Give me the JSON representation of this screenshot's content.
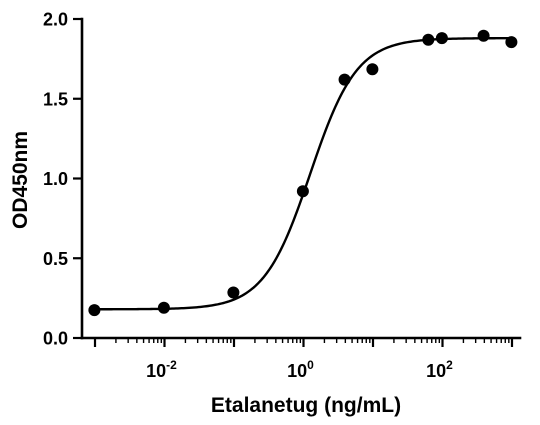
{
  "chart_data": {
    "type": "scatter",
    "title": "",
    "xlabel": "Etalanetug (ng/mL)",
    "ylabel": "OD450nm",
    "x_scale": "log10",
    "xlim": [
      0.001,
      1000
    ],
    "ylim": [
      0,
      2.0
    ],
    "grid": false,
    "legend": "none",
    "x_ticks": [
      {
        "value": 0.01,
        "base": "10",
        "exp": "-2"
      },
      {
        "value": 1,
        "base": "10",
        "exp": "0"
      },
      {
        "value": 100,
        "base": "10",
        "exp": "2"
      }
    ],
    "y_ticks": [
      {
        "value": 0.0,
        "label": "0.0"
      },
      {
        "value": 0.5,
        "label": "0.5"
      },
      {
        "value": 1.0,
        "label": "1.0"
      },
      {
        "value": 1.5,
        "label": "1.5"
      },
      {
        "value": 2.0,
        "label": "2.0"
      }
    ],
    "series": [
      {
        "marker": "circle",
        "color": "#000000",
        "points": [
          {
            "x": 0.00098,
            "y": 0.175
          },
          {
            "x": 0.0098,
            "y": 0.19
          },
          {
            "x": 0.098,
            "y": 0.285
          },
          {
            "x": 0.98,
            "y": 0.92
          },
          {
            "x": 3.9,
            "y": 1.62
          },
          {
            "x": 9.8,
            "y": 1.685
          },
          {
            "x": 62.5,
            "y": 1.87
          },
          {
            "x": 98,
            "y": 1.88
          },
          {
            "x": 390,
            "y": 1.895
          },
          {
            "x": 980,
            "y": 1.855
          }
        ]
      }
    ],
    "fit_curve": {
      "model": "4PL",
      "bottom": 0.18,
      "top": 1.88,
      "ec50": 1.25,
      "hill": 1.3,
      "color": "#000000"
    }
  }
}
